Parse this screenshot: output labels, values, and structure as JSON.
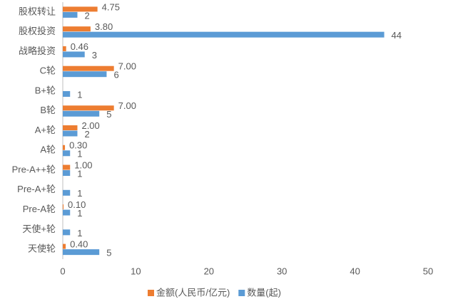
{
  "chart_data": {
    "type": "bar",
    "categories": [
      "股权转让",
      "股权投资",
      "战略投资",
      "C轮",
      "B+轮",
      "B轮",
      "A+轮",
      "A轮",
      "Pre-A++轮",
      "Pre-A+轮",
      "Pre-A轮",
      "天使+轮",
      "天使轮"
    ],
    "series": [
      {
        "name": "金额(人民币/亿元)",
        "color": "#ed7d31",
        "values": [
          4.75,
          3.8,
          0.46,
          7.0,
          null,
          7.0,
          2.0,
          0.3,
          1.0,
          null,
          0.1,
          null,
          0.4
        ],
        "value_labels": [
          "4.75",
          "3.80",
          "0.46",
          "7.00",
          null,
          "7.00",
          "2.00",
          "0.30",
          "1.00",
          null,
          "0.10",
          null,
          "0.40"
        ]
      },
      {
        "name": "数量(起)",
        "color": "#5b9bd5",
        "values": [
          2,
          44,
          3,
          6,
          1,
          5,
          2,
          1,
          1,
          1,
          1,
          1,
          5
        ]
      }
    ],
    "xlim": [
      0,
      50
    ],
    "xticks": [
      0,
      10,
      20,
      30,
      40,
      50
    ]
  }
}
